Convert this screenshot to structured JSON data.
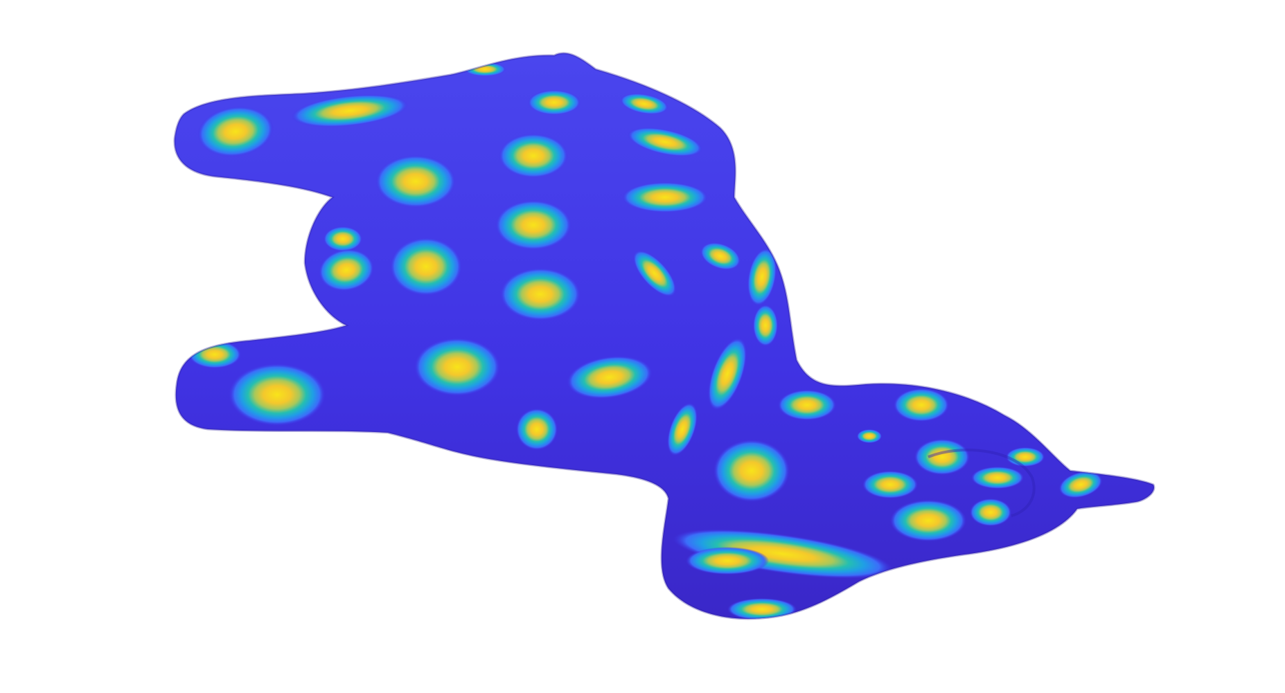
{
  "figure": {
    "icon": "colored-surface-render",
    "colormap": [
      "#3d26a8",
      "#4a3fe2",
      "#3f73fb",
      "#1fa4e6",
      "#21bfb7",
      "#7bcb6c",
      "#ecbd39",
      "#f8e31a"
    ],
    "background": "#ffffff",
    "surface_base_color": "#4032e6",
    "highlight_color": "#f9d21f"
  }
}
